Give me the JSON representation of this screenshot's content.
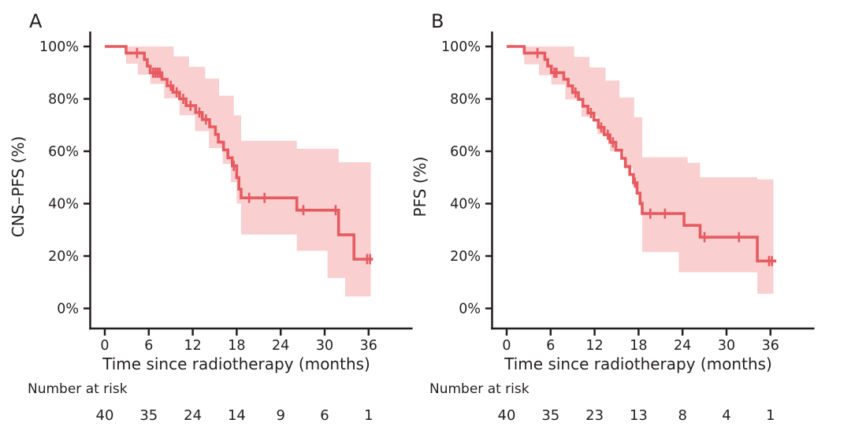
{
  "figure": {
    "background": "#ffffff",
    "text_color": "#231f20",
    "axis_color": "#231f20"
  },
  "chart_data": [
    {
      "type": "line",
      "chart_kind": "kaplan-meier-step",
      "panel_label": "A",
      "title": "",
      "xlabel": "Time since radiotherapy (months)",
      "ylabel": "CNS–PFS (%)",
      "xlim": [
        0,
        42
      ],
      "ylim": [
        0,
        100
      ],
      "grid": false,
      "x_ticks": [
        0,
        6,
        12,
        18,
        24,
        30,
        36
      ],
      "x_tick_labels": [
        "0",
        "6",
        "12",
        "18",
        "24",
        "30",
        "36"
      ],
      "y_ticks": [
        100,
        80,
        60,
        40,
        20,
        0
      ],
      "y_tick_labels": [
        "100%",
        "80%",
        "60%",
        "40%",
        "20%",
        "0%"
      ],
      "series": [
        {
          "name": "CNS-PFS",
          "color": "#e75b60",
          "ci_color": "#f9cfd0",
          "t_end": 36.6,
          "ci_t_end": 36.3,
          "steps": [
            [
              0,
              100
            ],
            [
              2.9,
              97.5
            ],
            [
              5.4,
              95
            ],
            [
              5.8,
              92.5
            ],
            [
              6.2,
              90
            ],
            [
              7.8,
              87.5
            ],
            [
              8.5,
              85
            ],
            [
              9.3,
              82.5
            ],
            [
              10.2,
              80
            ],
            [
              11.1,
              77.4
            ],
            [
              12.4,
              74.8
            ],
            [
              13.3,
              72.1
            ],
            [
              14.3,
              69.3
            ],
            [
              15.1,
              66.4
            ],
            [
              15.5,
              63.5
            ],
            [
              16.2,
              60.5
            ],
            [
              16.8,
              57.5
            ],
            [
              17.4,
              54.4
            ],
            [
              18.0,
              49.9
            ],
            [
              18.3,
              45.5
            ],
            [
              18.6,
              42.2
            ],
            [
              26.2,
              37.5
            ],
            [
              31.9,
              28.1
            ],
            [
              34.0,
              18.8
            ]
          ],
          "censor_marks": [
            [
              4.4,
              97.5
            ],
            [
              6.6,
              90
            ],
            [
              6.9,
              90
            ],
            [
              7.2,
              90
            ],
            [
              7.5,
              90
            ],
            [
              9.0,
              85
            ],
            [
              9.8,
              82.5
            ],
            [
              10.7,
              80
            ],
            [
              11.7,
              77.4
            ],
            [
              12.9,
              74.8
            ],
            [
              13.8,
              72.1
            ],
            [
              17.6,
              54.4
            ],
            [
              19.7,
              42.2
            ],
            [
              21.8,
              42.2
            ],
            [
              27.1,
              37.5
            ],
            [
              31.5,
              37.5
            ],
            [
              35.8,
              18.8
            ],
            [
              36.2,
              18.8
            ]
          ],
          "ci_upper": [
            [
              2.9,
              100
            ],
            [
              9.4,
              96.2
            ],
            [
              11.5,
              92.2
            ],
            [
              13.7,
              87.7
            ],
            [
              15.6,
              81.2
            ],
            [
              17.6,
              73.7
            ],
            [
              18.6,
              64.0
            ],
            [
              26.2,
              61.0
            ],
            [
              31.9,
              55.8
            ]
          ],
          "ci_lower": [
            [
              2.9,
              93.4
            ],
            [
              4.5,
              89.2
            ],
            [
              6.2,
              85.7
            ],
            [
              8.1,
              80.2
            ],
            [
              10.2,
              73.7
            ],
            [
              12.3,
              67.7
            ],
            [
              14.2,
              61.2
            ],
            [
              16.1,
              55.2
            ],
            [
              17.2,
              48.2
            ],
            [
              18.0,
              40.0
            ],
            [
              18.6,
              28.2
            ],
            [
              26.2,
              22.0
            ],
            [
              30.4,
              11.6
            ],
            [
              32.8,
              4.6
            ]
          ]
        }
      ],
      "number_at_risk": {
        "label": "Number at risk",
        "times": [
          0,
          6,
          12,
          18,
          24,
          30,
          36
        ],
        "counts": [
          40,
          35,
          24,
          14,
          9,
          6,
          1
        ]
      }
    },
    {
      "type": "line",
      "chart_kind": "kaplan-meier-step",
      "panel_label": "B",
      "title": "",
      "xlabel": "Time since radiotherapy (months)",
      "ylabel": "PFS (%)",
      "xlim": [
        0,
        42
      ],
      "ylim": [
        0,
        100
      ],
      "grid": false,
      "x_ticks": [
        0,
        6,
        12,
        18,
        24,
        30,
        36
      ],
      "x_tick_labels": [
        "0",
        "6",
        "12",
        "18",
        "24",
        "30",
        "36"
      ],
      "y_ticks": [
        100,
        80,
        60,
        40,
        20,
        0
      ],
      "y_tick_labels": [
        "100%",
        "80%",
        "60%",
        "40%",
        "20%",
        "0%"
      ],
      "series": [
        {
          "name": "PFS",
          "color": "#e75b60",
          "ci_color": "#f9cfd0",
          "t_end": 36.8,
          "ci_t_end": 36.4,
          "steps": [
            [
              0,
              100
            ],
            [
              2.4,
              97.5
            ],
            [
              5.2,
              95
            ],
            [
              5.6,
              92.5
            ],
            [
              6.1,
              90
            ],
            [
              7.8,
              87.5
            ],
            [
              8.4,
              85
            ],
            [
              9.0,
              82.4
            ],
            [
              9.8,
              79.8
            ],
            [
              10.4,
              77.2
            ],
            [
              11.1,
              74.6
            ],
            [
              11.9,
              71.9
            ],
            [
              12.5,
              69.1
            ],
            [
              13.3,
              66.3
            ],
            [
              14.1,
              63.4
            ],
            [
              14.9,
              60.4
            ],
            [
              15.7,
              57.3
            ],
            [
              16.2,
              54.2
            ],
            [
              16.8,
              51.1
            ],
            [
              17.3,
              48.0
            ],
            [
              17.8,
              44.0
            ],
            [
              18.2,
              40.1
            ],
            [
              18.5,
              36.2
            ],
            [
              24.2,
              31.7
            ],
            [
              26.4,
              27.2
            ],
            [
              34.2,
              18.1
            ]
          ],
          "censor_marks": [
            [
              4.2,
              97.5
            ],
            [
              6.5,
              90
            ],
            [
              6.8,
              90
            ],
            [
              9.4,
              82.4
            ],
            [
              11.5,
              74.6
            ],
            [
              12.9,
              69.1
            ],
            [
              13.8,
              66.3
            ],
            [
              14.5,
              63.4
            ],
            [
              17.5,
              48.0
            ],
            [
              19.6,
              36.2
            ],
            [
              21.6,
              36.2
            ],
            [
              27.0,
              27.2
            ],
            [
              31.7,
              27.2
            ],
            [
              35.8,
              18.1
            ],
            [
              36.2,
              18.1
            ]
          ],
          "ci_upper": [
            [
              2.4,
              100
            ],
            [
              9.2,
              96.0
            ],
            [
              11.3,
              92.0
            ],
            [
              13.5,
              87.0
            ],
            [
              15.4,
              80.5
            ],
            [
              17.4,
              73.0
            ],
            [
              18.5,
              57.7
            ],
            [
              24.7,
              55.6
            ],
            [
              26.4,
              50.1
            ],
            [
              34.2,
              49.3
            ]
          ],
          "ci_lower": [
            [
              2.4,
              93.2
            ],
            [
              4.4,
              89.0
            ],
            [
              6.1,
              85.5
            ],
            [
              8.0,
              79.8
            ],
            [
              10.2,
              73.2
            ],
            [
              12.4,
              66.5
            ],
            [
              14.1,
              60.0
            ],
            [
              16.0,
              53.3
            ],
            [
              17.2,
              47.0
            ],
            [
              18.0,
              39.0
            ],
            [
              18.5,
              21.6
            ],
            [
              23.5,
              13.8
            ],
            [
              34.2,
              5.6
            ]
          ]
        }
      ],
      "number_at_risk": {
        "label": "Number at risk",
        "times": [
          0,
          6,
          12,
          18,
          24,
          30,
          36
        ],
        "counts": [
          40,
          35,
          23,
          13,
          8,
          4,
          1
        ]
      }
    }
  ]
}
